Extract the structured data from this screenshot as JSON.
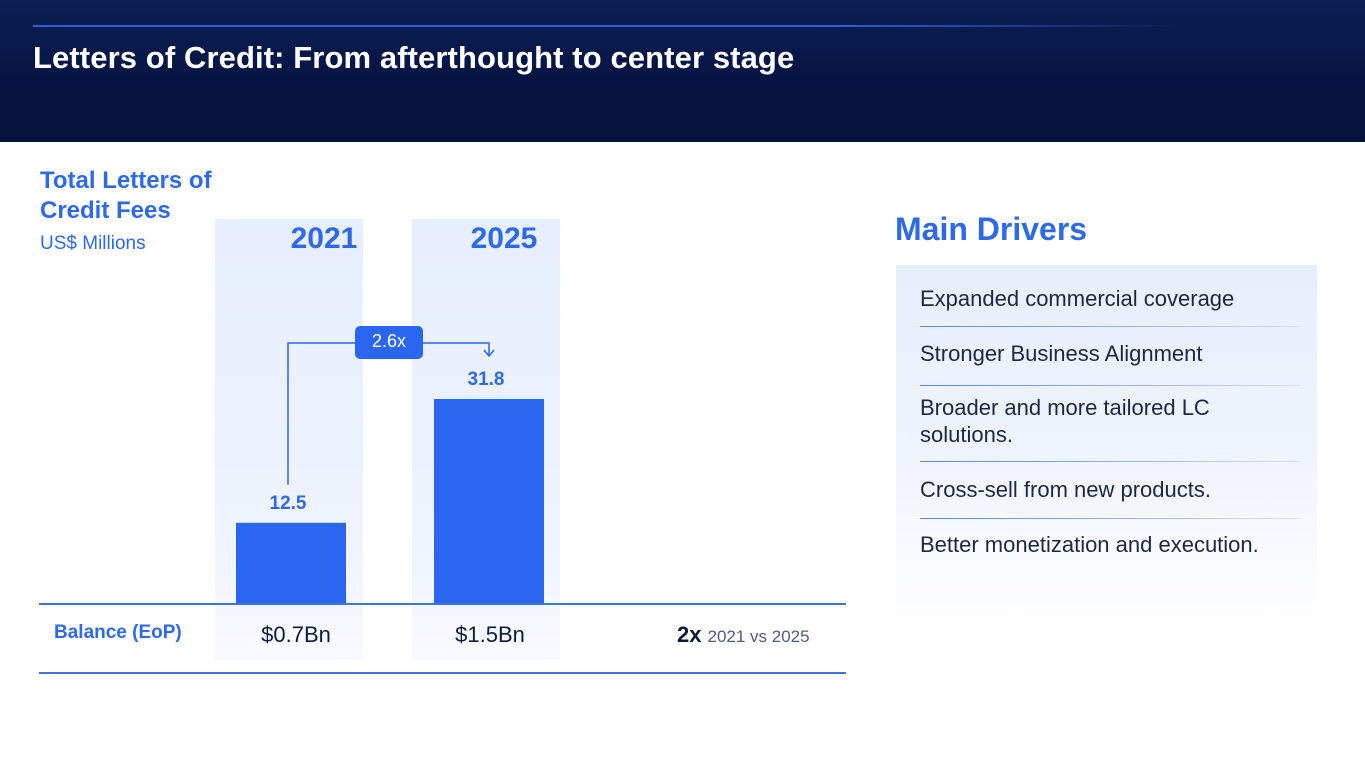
{
  "page": {
    "title": "Letters of Credit: From afterthought to center stage"
  },
  "chart_data": {
    "type": "bar",
    "title": "Total Letters of Credit Fees",
    "unit": "US$ Millions",
    "categories": [
      "2021",
      "2025"
    ],
    "values": [
      12.5,
      31.8
    ],
    "value_labels": [
      "12.5",
      "31.8"
    ],
    "ylim": [
      0,
      40
    ],
    "multiplier_label": "2.6x",
    "accent_color": "#2a66f0"
  },
  "balance": {
    "label": "Balance (EoP)",
    "values": [
      "$0.7Bn",
      "$1.5Bn"
    ],
    "growth": "2x",
    "growth_note": "2021 vs 2025"
  },
  "drivers": {
    "title": "Main Drivers",
    "items": [
      "Expanded commercial coverage",
      "Stronger Business Alignment",
      "Broader and more tailored LC solutions.",
      "Cross-sell from new products.",
      "Better monetization and execution."
    ]
  }
}
